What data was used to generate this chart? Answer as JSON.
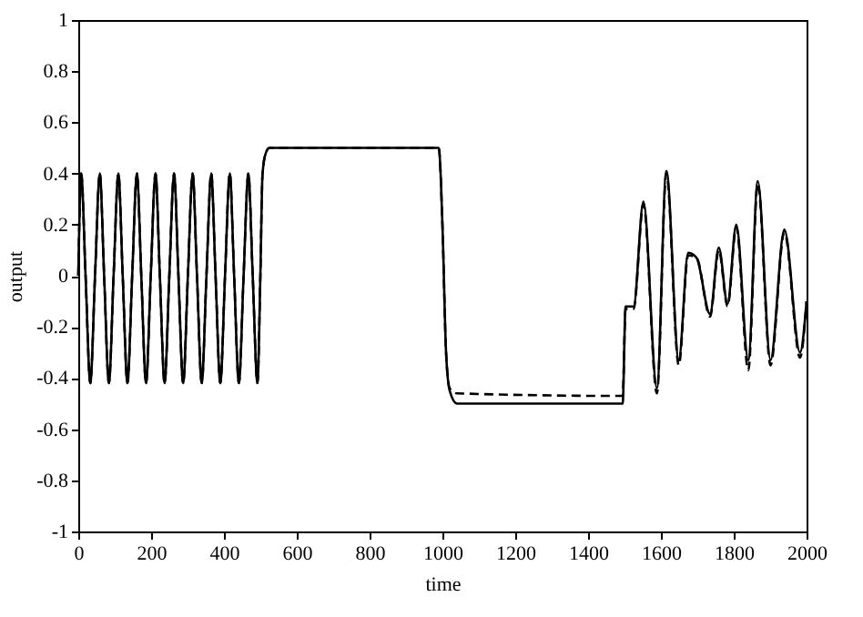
{
  "chart_data": {
    "type": "line",
    "xlabel": "time",
    "ylabel": "output",
    "x": [
      0,
      8,
      20,
      33,
      46,
      59,
      71,
      84,
      97,
      110,
      122,
      135,
      148,
      161,
      173,
      186,
      199,
      212,
      224,
      237,
      250,
      263,
      275,
      288,
      301,
      314,
      326,
      339,
      352,
      365,
      377,
      390,
      403,
      416,
      428,
      441,
      454,
      467,
      479,
      492,
      500,
      506,
      515,
      525,
      990,
      1000,
      1010,
      1020,
      1040,
      1495,
      1503,
      1525,
      1552,
      1589,
      1615,
      1649,
      1675,
      1698,
      1735,
      1759,
      1783,
      1807,
      1840,
      1866,
      1901,
      1939,
      1982,
      2000
    ],
    "series": [
      {
        "color": "#000000",
        "line_style": "solid",
        "values": [
          0,
          0.4,
          0,
          -0.42,
          0,
          0.4,
          0,
          -0.42,
          0,
          0.4,
          0,
          -0.42,
          0,
          0.4,
          0,
          -0.42,
          0,
          0.4,
          0,
          -0.42,
          0,
          0.4,
          0,
          -0.42,
          0,
          0.4,
          0,
          -0.42,
          0,
          0.4,
          0,
          -0.42,
          0,
          0.4,
          0,
          -0.42,
          0,
          0.4,
          0,
          -0.42,
          0,
          0.4,
          0.48,
          0.5,
          0.5,
          0.2,
          -0.3,
          -0.45,
          -0.5,
          -0.5,
          -0.12,
          -0.12,
          0.29,
          -0.44,
          0.41,
          -0.33,
          0.09,
          0.07,
          -0.15,
          0.11,
          -0.11,
          0.2,
          -0.33,
          0.37,
          -0.33,
          0.18,
          -0.3,
          -0.1
        ]
      },
      {
        "color": "#000000",
        "line_style": "dashed",
        "values": [
          0,
          0.4,
          0,
          -0.42,
          0,
          0.4,
          0,
          -0.42,
          0,
          0.4,
          0,
          -0.42,
          0,
          0.4,
          0,
          -0.42,
          0,
          0.4,
          0,
          -0.42,
          0,
          0.4,
          0,
          -0.42,
          0,
          0.4,
          0,
          -0.42,
          0,
          0.4,
          0,
          -0.42,
          0,
          0.4,
          0,
          -0.42,
          0,
          0.4,
          0,
          -0.42,
          0,
          0.4,
          0.48,
          0.5,
          0.5,
          0.2,
          -0.3,
          -0.44,
          -0.46,
          -0.47,
          -0.13,
          -0.13,
          0.28,
          -0.46,
          0.4,
          -0.35,
          0.08,
          0.07,
          -0.16,
          0.1,
          -0.12,
          0.19,
          -0.37,
          0.36,
          -0.35,
          0.17,
          -0.32,
          -0.1
        ]
      }
    ],
    "xlim": [
      0,
      2000
    ],
    "xticks": [
      0,
      200,
      400,
      600,
      800,
      1000,
      1200,
      1400,
      1600,
      1800,
      2000
    ],
    "ylim": [
      -1,
      1
    ],
    "yticks": [
      -1,
      -0.8,
      -0.6,
      -0.4,
      -0.2,
      0,
      0.2,
      0.4,
      0.6,
      0.8,
      1
    ],
    "grid": false,
    "marker": "none"
  }
}
